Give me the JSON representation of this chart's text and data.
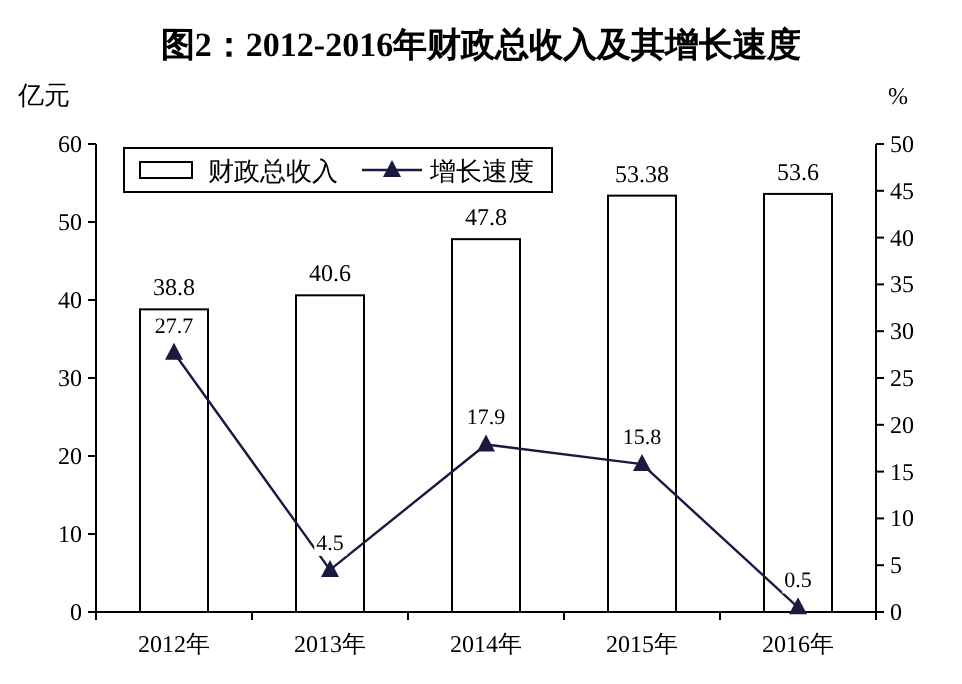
{
  "chart_data": {
    "type": "bar",
    "title": "图2：2012-2016年财政总收入及其增长速度",
    "ylabel": "亿元",
    "y2label": "%",
    "categories": [
      "2012年",
      "2013年",
      "2014年",
      "2015年",
      "2016年"
    ],
    "series": [
      {
        "name": "财政总收入",
        "color": "#ffffff",
        "values": [
          38.8,
          40.6,
          47.8,
          53.38,
          53.6
        ]
      },
      {
        "name": "增长速度",
        "type": "line",
        "axis": "y2",
        "color": "#1a1a40",
        "marker": "triangle",
        "values": [
          27.7,
          4.5,
          17.9,
          15.8,
          0.5
        ]
      }
    ],
    "ylim": [
      0,
      60
    ],
    "yticks": [
      0,
      10,
      20,
      30,
      40,
      50,
      60
    ],
    "y2lim": [
      0,
      50
    ],
    "y2ticks": [
      0,
      5,
      10,
      15,
      20,
      25,
      30,
      35,
      40,
      45,
      50
    ],
    "data_labels": true,
    "legend": "top left",
    "grid": false
  }
}
